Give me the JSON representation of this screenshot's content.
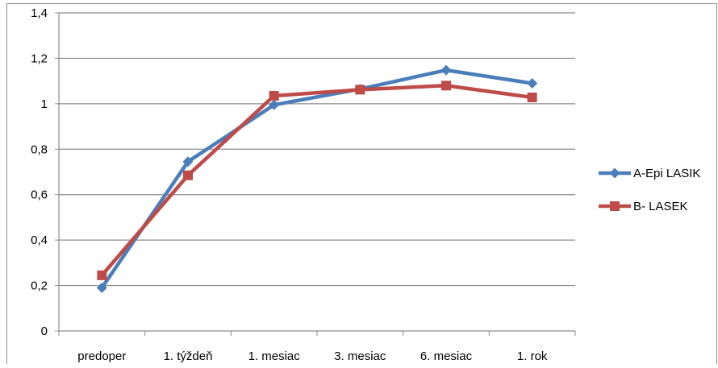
{
  "chart_data": {
    "type": "line",
    "categories": [
      "predoper",
      "1. týždeň",
      "1. mesiac",
      "3. mesiac",
      "6. mesiac",
      "1. rok"
    ],
    "series": [
      {
        "name": "A-Epi LASIK",
        "values": [
          0.19,
          0.745,
          0.995,
          1.065,
          1.148,
          1.09
        ],
        "color": "#4A7EBB",
        "marker": "diamond"
      },
      {
        "name": "B- LASEK",
        "values": [
          0.245,
          0.685,
          1.035,
          1.062,
          1.08,
          1.028
        ],
        "color": "#BE4B48",
        "marker": "square"
      }
    ],
    "y_ticks": [
      "0",
      "0,2",
      "0,4",
      "0,6",
      "0,8",
      "1",
      "1,2",
      "1,4"
    ],
    "ylim": [
      0,
      1.4
    ],
    "y_step": 0.2,
    "grid": "horizontal",
    "legend_position": "right",
    "title": "",
    "xlabel": "",
    "ylabel": ""
  }
}
